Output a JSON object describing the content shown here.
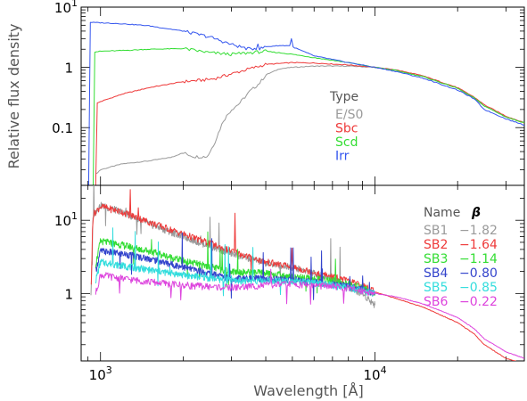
{
  "chart_data": [
    {
      "type": "line",
      "panel": "top",
      "title": "",
      "xlabel": "",
      "ylabel": "Relative flux density",
      "xscale": "log",
      "yscale": "log",
      "xlim": [
        850,
        35000
      ],
      "ylim": [
        0.011,
        10
      ],
      "yticks": [
        {
          "value": 10,
          "label": "10",
          "sup": "1"
        },
        {
          "value": 1,
          "label": "1",
          "sup": ""
        },
        {
          "value": 0.1,
          "label": "0.1",
          "sup": ""
        }
      ],
      "legend": {
        "title": "Type",
        "placement": "center-right",
        "entries": [
          {
            "name": "E/S0",
            "color": "#9a9a9a"
          },
          {
            "name": "Sbc",
            "color": "#ee3a3a"
          },
          {
            "name": "Scd",
            "color": "#33dd33"
          },
          {
            "name": "Irr",
            "color": "#3355ee"
          }
        ]
      },
      "series": [
        {
          "name": "E/S0",
          "color": "#9a9a9a",
          "points": [
            [
              950,
              0.016
            ],
            [
              1000,
              0.02
            ],
            [
              1200,
              0.025
            ],
            [
              1500,
              0.028
            ],
            [
              1800,
              0.032
            ],
            [
              2000,
              0.038
            ],
            [
              2200,
              0.033
            ],
            [
              2450,
              0.033
            ],
            [
              2600,
              0.055
            ],
            [
              2800,
              0.13
            ],
            [
              3000,
              0.2
            ],
            [
              3200,
              0.25
            ],
            [
              3500,
              0.4
            ],
            [
              3800,
              0.55
            ],
            [
              4000,
              0.75
            ],
            [
              4500,
              0.95
            ],
            [
              5000,
              1.0
            ],
            [
              6000,
              1.05
            ],
            [
              8000,
              1.05
            ],
            [
              10000,
              1.0
            ],
            [
              12000,
              0.9
            ],
            [
              15000,
              0.72
            ],
            [
              20000,
              0.45
            ],
            [
              23000,
              0.3
            ],
            [
              25000,
              0.23
            ],
            [
              30000,
              0.15
            ],
            [
              35000,
              0.12
            ]
          ]
        },
        {
          "name": "Sbc",
          "color": "#ee3a3a",
          "points": [
            [
              960,
              0.011
            ],
            [
              965,
              0.25
            ],
            [
              1000,
              0.27
            ],
            [
              1200,
              0.36
            ],
            [
              1500,
              0.46
            ],
            [
              2000,
              0.58
            ],
            [
              2400,
              0.62
            ],
            [
              2600,
              0.65
            ],
            [
              3000,
              0.78
            ],
            [
              3500,
              0.95
            ],
            [
              4000,
              1.12
            ],
            [
              5000,
              1.2
            ],
            [
              6000,
              1.18
            ],
            [
              8000,
              1.1
            ],
            [
              10000,
              1.0
            ],
            [
              12000,
              0.9
            ],
            [
              15000,
              0.72
            ],
            [
              20000,
              0.46
            ],
            [
              23000,
              0.32
            ],
            [
              25000,
              0.24
            ],
            [
              30000,
              0.155
            ],
            [
              35000,
              0.12
            ]
          ]
        },
        {
          "name": "Scd",
          "color": "#33dd33",
          "points": [
            [
              940,
              0.011
            ],
            [
              945,
              1.8
            ],
            [
              1000,
              1.85
            ],
            [
              1200,
              1.9
            ],
            [
              1500,
              2.0
            ],
            [
              2000,
              2.05
            ],
            [
              2500,
              1.75
            ],
            [
              3000,
              1.65
            ],
            [
              3500,
              1.75
            ],
            [
              4000,
              1.85
            ],
            [
              5000,
              1.65
            ],
            [
              6000,
              1.45
            ],
            [
              8000,
              1.2
            ],
            [
              10000,
              1.0
            ],
            [
              12000,
              0.88
            ],
            [
              15000,
              0.7
            ],
            [
              20000,
              0.45
            ],
            [
              23000,
              0.31
            ],
            [
              25000,
              0.23
            ],
            [
              30000,
              0.15
            ],
            [
              35000,
              0.12
            ]
          ]
        },
        {
          "name": "Irr",
          "color": "#3355ee",
          "points": [
            [
              905,
              0.011
            ],
            [
              910,
              5.6
            ],
            [
              1000,
              5.5
            ],
            [
              1200,
              5.3
            ],
            [
              1500,
              4.9
            ],
            [
              2000,
              4.0
            ],
            [
              2500,
              3.2
            ],
            [
              3000,
              2.4
            ],
            [
              3500,
              2.0
            ],
            [
              3700,
              2.1
            ],
            [
              3730,
              3.0
            ],
            [
              3760,
              2.0
            ],
            [
              4000,
              2.2
            ],
            [
              4500,
              2.3
            ],
            [
              4900,
              2.3
            ],
            [
              4950,
              3.2
            ],
            [
              5000,
              2.2
            ],
            [
              6000,
              1.55
            ],
            [
              8000,
              1.2
            ],
            [
              10000,
              1.0
            ],
            [
              12000,
              0.85
            ],
            [
              15000,
              0.66
            ],
            [
              20000,
              0.42
            ],
            [
              23000,
              0.3
            ],
            [
              25000,
              0.2
            ],
            [
              30000,
              0.14
            ],
            [
              35000,
              0.11
            ]
          ]
        }
      ]
    },
    {
      "type": "line",
      "panel": "bottom",
      "title": "",
      "xlabel": "Wavelength [Å]",
      "ylabel": "",
      "xscale": "log",
      "yscale": "log",
      "xlim": [
        850,
        35000
      ],
      "ylim": [
        0.12,
        30
      ],
      "xticks": [
        {
          "value": 1000,
          "label": "10",
          "sup": "3"
        },
        {
          "value": 10000,
          "label": "10",
          "sup": "4"
        }
      ],
      "yticks": [
        {
          "value": 10,
          "label": "10",
          "sup": "1"
        },
        {
          "value": 1,
          "label": "1",
          "sup": ""
        }
      ],
      "legend": {
        "title": "Name",
        "title2": "β",
        "placement": "top-right",
        "entries": [
          {
            "name": "SB1",
            "beta": "−1.82",
            "color": "#9a9a9a"
          },
          {
            "name": "SB2",
            "beta": "−1.64",
            "color": "#ee3a3a"
          },
          {
            "name": "SB3",
            "beta": "−1.14",
            "color": "#33dd33"
          },
          {
            "name": "SB4",
            "beta": "−0.80",
            "color": "#3344cc"
          },
          {
            "name": "SB5",
            "beta": "−0.85",
            "color": "#33dddd"
          },
          {
            "name": "SB6",
            "beta": "−0.22",
            "color": "#dd44dd"
          }
        ]
      },
      "series": [
        {
          "name": "SB1",
          "color": "#9a9a9a",
          "points": [
            [
              920,
              0.6
            ],
            [
              940,
              12
            ],
            [
              1000,
              16
            ],
            [
              1200,
              13
            ],
            [
              1500,
              9
            ],
            [
              2000,
              6
            ],
            [
              3000,
              3.5
            ],
            [
              4000,
              2.6
            ],
            [
              5000,
              2.3
            ],
            [
              7000,
              1.6
            ],
            [
              9000,
              1.0
            ],
            [
              10000,
              0.7
            ]
          ]
        },
        {
          "name": "SB2",
          "color": "#ee3a3a",
          "points": [
            [
              920,
              0.6
            ],
            [
              940,
              12
            ],
            [
              1000,
              15.5
            ],
            [
              1200,
              13
            ],
            [
              1500,
              9.5
            ],
            [
              2000,
              6.5
            ],
            [
              3000,
              3.8
            ],
            [
              4000,
              2.7
            ],
            [
              5000,
              2.3
            ],
            [
              7000,
              1.7
            ],
            [
              9000,
              1.3
            ],
            [
              10000,
              1.05
            ],
            [
              12000,
              0.85
            ],
            [
              15000,
              0.65
            ],
            [
              20000,
              0.4
            ],
            [
              23000,
              0.28
            ],
            [
              25000,
              0.2
            ],
            [
              30000,
              0.13
            ],
            [
              35000,
              0.11
            ]
          ]
        },
        {
          "name": "SB3",
          "color": "#33dd33",
          "points": [
            [
              960,
              2.5
            ],
            [
              1000,
              5.2
            ],
            [
              1200,
              4.6
            ],
            [
              1500,
              3.8
            ],
            [
              2000,
              2.8
            ],
            [
              3000,
              2.0
            ],
            [
              4000,
              1.9
            ],
            [
              5000,
              1.7
            ],
            [
              7000,
              1.5
            ],
            [
              9000,
              1.2
            ],
            [
              10000,
              1.0
            ]
          ]
        },
        {
          "name": "SB4",
          "color": "#3344cc",
          "points": [
            [
              960,
              2.0
            ],
            [
              1000,
              3.8
            ],
            [
              1200,
              3.5
            ],
            [
              1500,
              3.0
            ],
            [
              2000,
              2.3
            ],
            [
              3000,
              1.6
            ],
            [
              4000,
              1.6
            ],
            [
              5000,
              1.55
            ],
            [
              7000,
              1.35
            ],
            [
              9000,
              1.15
            ],
            [
              10000,
              1.0
            ]
          ]
        },
        {
          "name": "SB5",
          "color": "#33dddd",
          "points": [
            [
              960,
              1.5
            ],
            [
              1000,
              2.7
            ],
            [
              1200,
              2.4
            ],
            [
              1500,
              2.1
            ],
            [
              2000,
              1.8
            ],
            [
              3000,
              1.5
            ],
            [
              4000,
              1.5
            ],
            [
              5000,
              1.5
            ],
            [
              7000,
              1.3
            ],
            [
              9000,
              1.1
            ],
            [
              10000,
              1.0
            ]
          ]
        },
        {
          "name": "SB6",
          "color": "#dd44dd",
          "points": [
            [
              960,
              1.0
            ],
            [
              1000,
              1.8
            ],
            [
              1200,
              1.6
            ],
            [
              1500,
              1.45
            ],
            [
              2000,
              1.3
            ],
            [
              3000,
              1.2
            ],
            [
              4000,
              1.3
            ],
            [
              5000,
              1.35
            ],
            [
              7000,
              1.25
            ],
            [
              9000,
              1.1
            ],
            [
              10000,
              1.0
            ],
            [
              12000,
              0.9
            ],
            [
              15000,
              0.72
            ],
            [
              20000,
              0.47
            ],
            [
              23000,
              0.33
            ],
            [
              25000,
              0.24
            ],
            [
              30000,
              0.16
            ],
            [
              35000,
              0.13
            ]
          ]
        }
      ]
    }
  ]
}
